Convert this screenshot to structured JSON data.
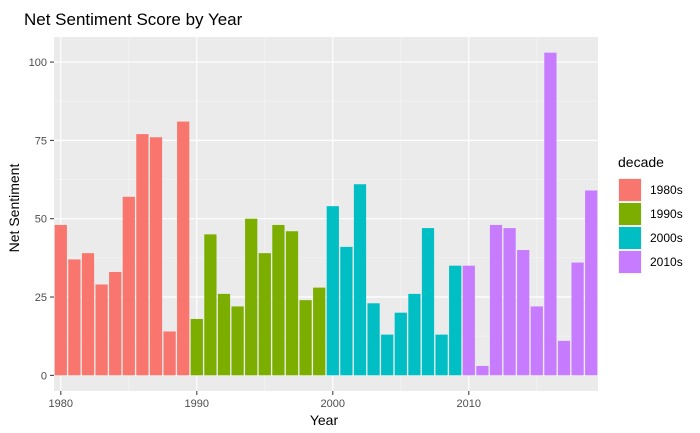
{
  "chart_data": {
    "type": "bar",
    "title": "Net Sentiment Score by Year",
    "xlabel": "Year",
    "ylabel": "Net Sentiment",
    "xlim": [
      1979.5,
      2019.5
    ],
    "ylim": [
      -5,
      108
    ],
    "x_ticks": [
      1980,
      1990,
      2000,
      2010
    ],
    "y_ticks": [
      0,
      25,
      50,
      75,
      100
    ],
    "grid": true,
    "legend": {
      "title": "decade",
      "position": "right",
      "entries": [
        {
          "label": "1980s",
          "color": "#F8766D"
        },
        {
          "label": "1990s",
          "color": "#7CAE00"
        },
        {
          "label": "2000s",
          "color": "#00BFC4"
        },
        {
          "label": "2010s",
          "color": "#C77CFF"
        }
      ]
    },
    "x": [
      1980,
      1981,
      1982,
      1983,
      1984,
      1985,
      1986,
      1987,
      1988,
      1989,
      1990,
      1991,
      1992,
      1993,
      1994,
      1995,
      1996,
      1997,
      1998,
      1999,
      2000,
      2001,
      2002,
      2003,
      2004,
      2005,
      2006,
      2007,
      2008,
      2009,
      2010,
      2011,
      2012,
      2013,
      2014,
      2015,
      2016,
      2017,
      2018,
      2019
    ],
    "values": [
      48,
      37,
      39,
      29,
      33,
      57,
      77,
      76,
      14,
      81,
      18,
      45,
      26,
      22,
      50,
      39,
      48,
      46,
      24,
      28,
      54,
      41,
      61,
      23,
      13,
      20,
      26,
      47,
      13,
      35,
      35,
      3,
      48,
      47,
      40,
      22,
      103,
      11,
      36,
      59
    ],
    "decade": [
      "1980s",
      "1980s",
      "1980s",
      "1980s",
      "1980s",
      "1980s",
      "1980s",
      "1980s",
      "1980s",
      "1980s",
      "1990s",
      "1990s",
      "1990s",
      "1990s",
      "1990s",
      "1990s",
      "1990s",
      "1990s",
      "1990s",
      "1990s",
      "2000s",
      "2000s",
      "2000s",
      "2000s",
      "2000s",
      "2000s",
      "2000s",
      "2000s",
      "2000s",
      "2000s",
      "2010s",
      "2010s",
      "2010s",
      "2010s",
      "2010s",
      "2010s",
      "2010s",
      "2010s",
      "2010s",
      "2010s"
    ]
  }
}
